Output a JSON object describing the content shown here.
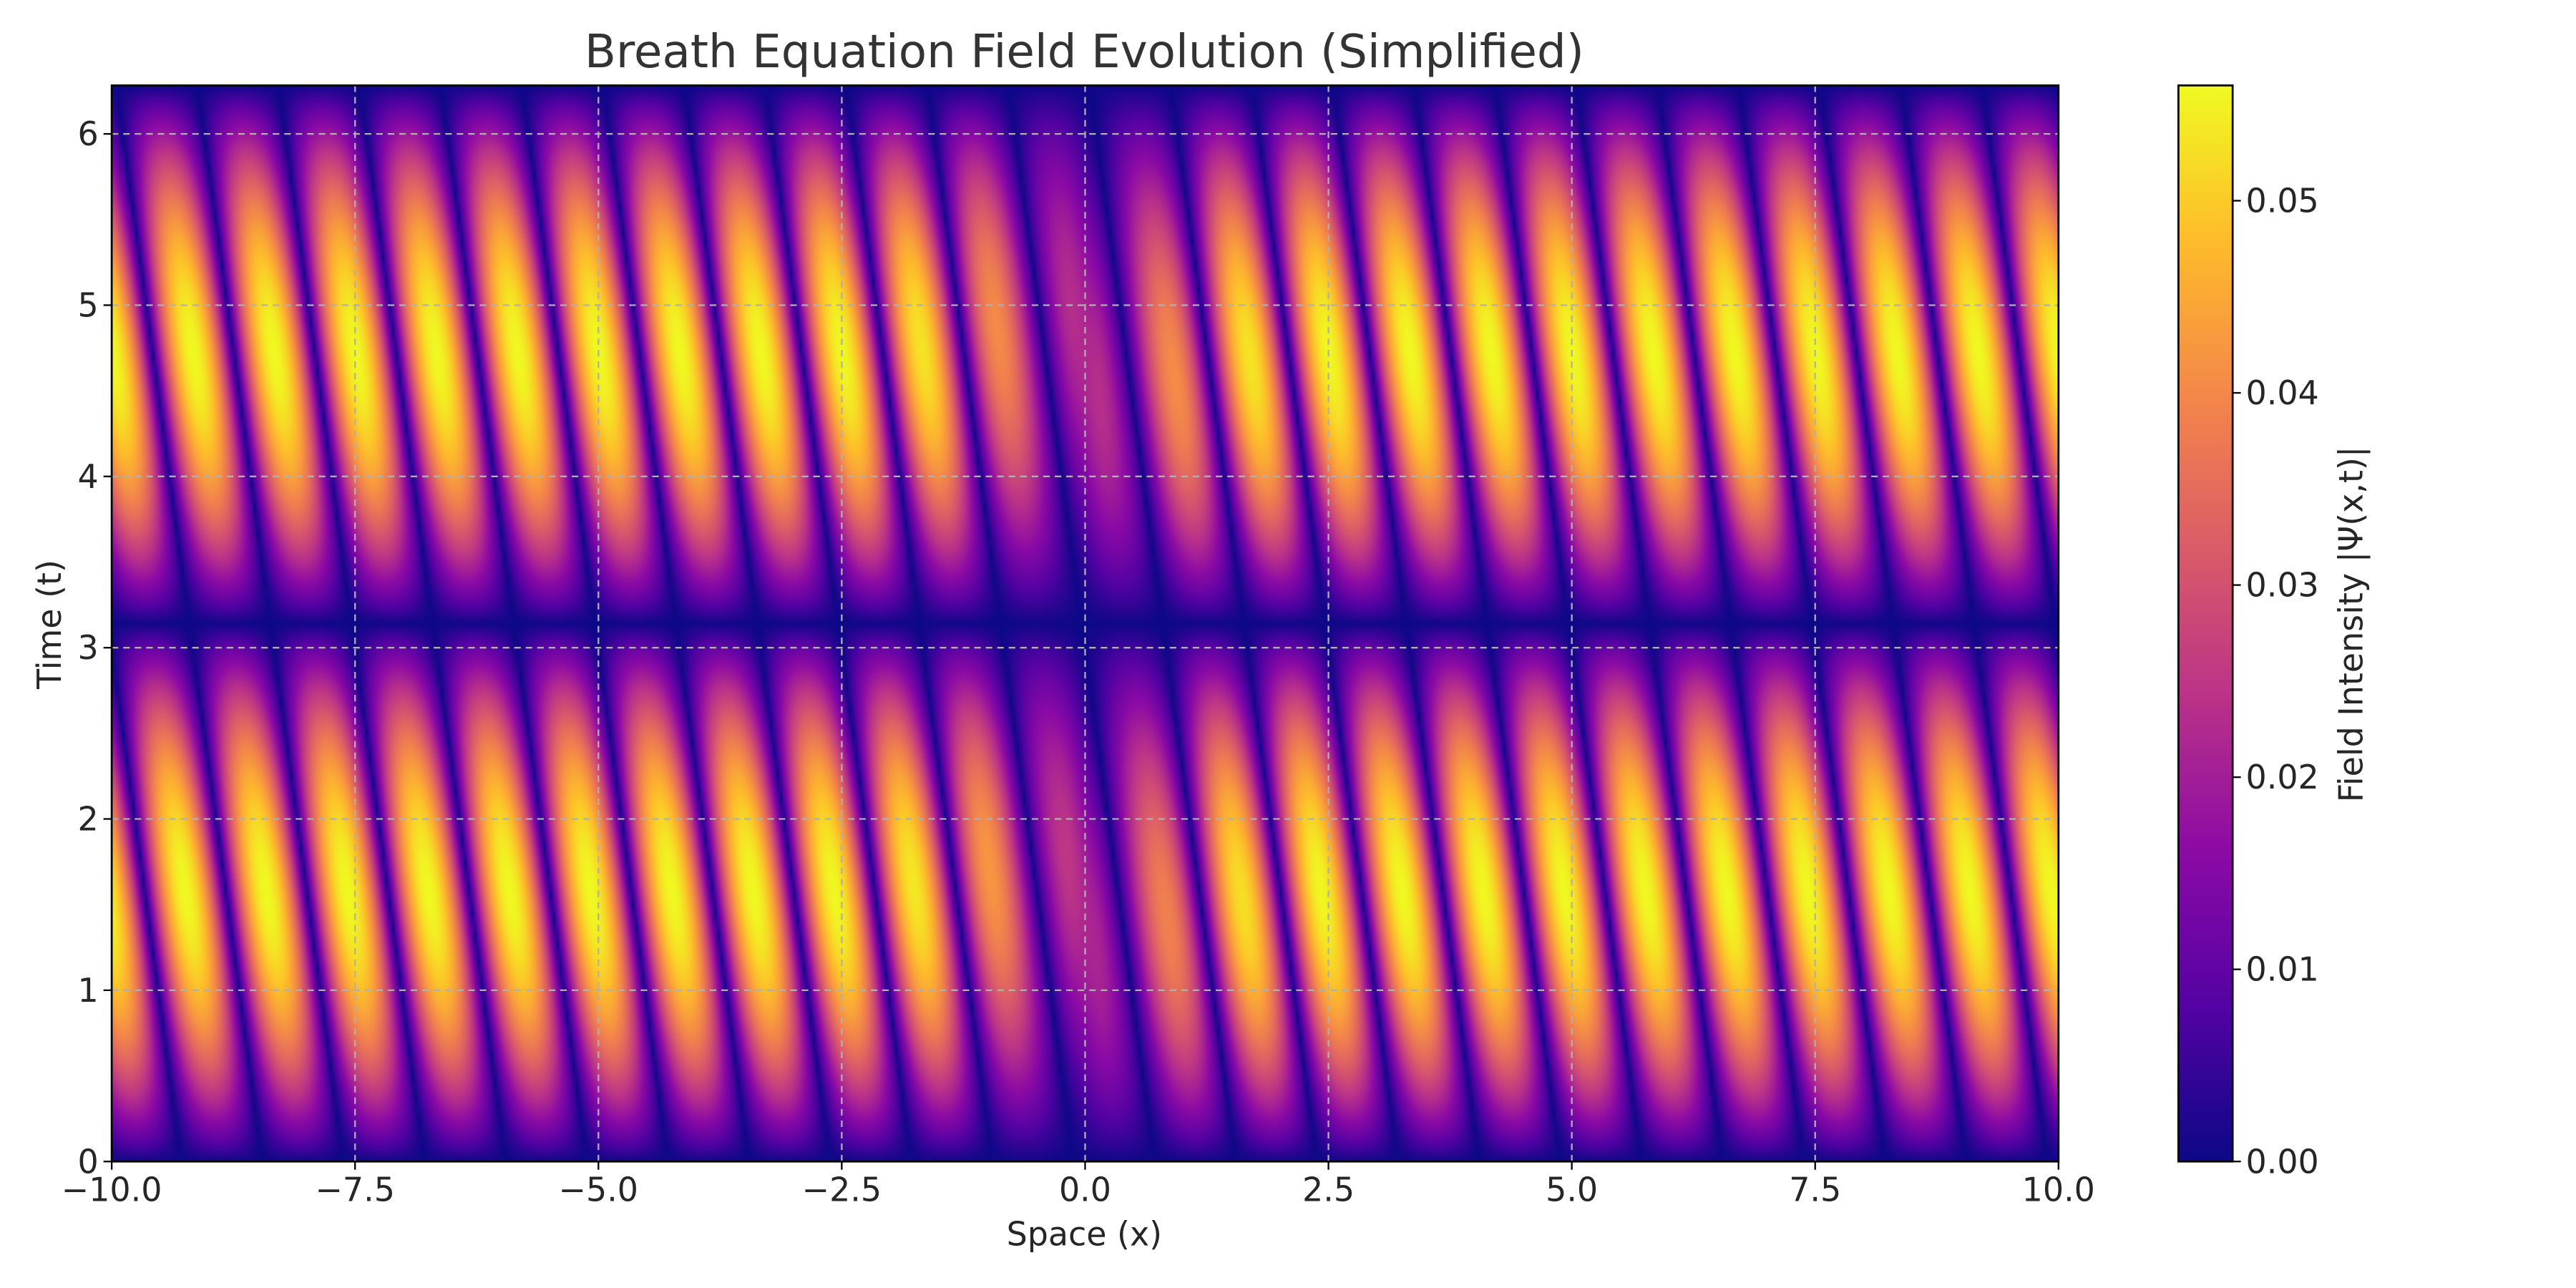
{
  "chart_data": {
    "type": "heatmap",
    "title": "Breath Equation Field Evolution (Simplified)",
    "xlabel": "Space (x)",
    "ylabel": "Time (t)",
    "xlim": [
      -10,
      10
    ],
    "ylim": [
      0,
      6.283
    ],
    "xticks": [
      -10,
      -7.5,
      -5,
      -2.5,
      0,
      2.5,
      5,
      7.5,
      10
    ],
    "xtick_labels": [
      "−10.0",
      "−7.5",
      "−5.0",
      "−2.5",
      "0.0",
      "2.5",
      "5.0",
      "7.5",
      "10.0"
    ],
    "yticks": [
      0,
      1,
      2,
      3,
      4,
      5,
      6
    ],
    "ytick_labels": [
      "0",
      "1",
      "2",
      "3",
      "4",
      "5",
      "6"
    ],
    "grid": true,
    "colormap": "plasma",
    "colorbar": {
      "label": "Field Intensity |Ψ(x,t)|",
      "range": [
        0,
        0.056
      ],
      "ticks": [
        0,
        0.01,
        0.02,
        0.03,
        0.04,
        0.05
      ],
      "tick_labels": [
        "0.00",
        "0.01",
        "0.02",
        "0.03",
        "0.04",
        "0.05"
      ]
    },
    "field_model": {
      "amplitude_max": 0.056,
      "spatial_period": 1.667,
      "stripe_count": 12,
      "temporal_period": 3.1416,
      "dark_line_at_t": 3.1416,
      "dark_line_at_x": 0,
      "peak_t_lower": 1.57,
      "peak_t_upper": 4.71
    }
  },
  "colors": {
    "background": "#ffffff",
    "text": "#262626",
    "grid": "#b0b0b0",
    "axis": "#000000"
  }
}
